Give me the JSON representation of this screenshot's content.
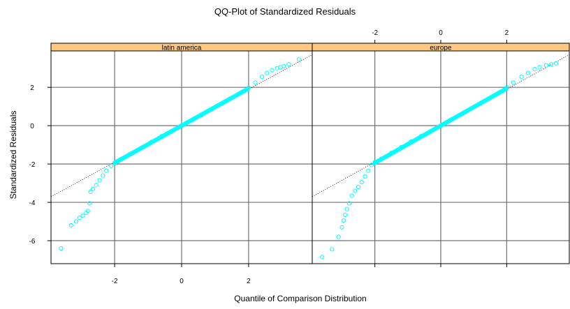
{
  "chart_data": {
    "type": "scatter",
    "title": "QQ-Plot of Standardized Residuals",
    "xlabel": "Quantile of Comparison Distribution",
    "ylabel": "Standardized Residuals",
    "xlim": [
      -3.9,
      3.9
    ],
    "ylim": [
      -7.2,
      3.9
    ],
    "x_ticks": [
      -2,
      0,
      2
    ],
    "y_ticks": [
      2,
      0,
      -2,
      -4,
      -6
    ],
    "x_tick_labels": [
      "-2",
      "0",
      "2"
    ],
    "y_tick_labels": [
      "2",
      "0",
      "-2",
      "-4",
      "-6"
    ],
    "grid": true,
    "point_color": "#00ffff",
    "strip_color": "#ffc880",
    "reference_line": {
      "slope": 0.95,
      "intercept": 0.0
    },
    "panels": [
      {
        "name": "latin america",
        "points": [
          [
            -3.6,
            -6.4
          ],
          [
            -3.3,
            -5.2
          ],
          [
            -3.15,
            -5.0
          ],
          [
            -3.05,
            -4.8
          ],
          [
            -2.95,
            -4.7
          ],
          [
            -2.85,
            -4.55
          ],
          [
            -2.8,
            -4.45
          ],
          [
            -2.75,
            -4.05
          ],
          [
            -2.72,
            -3.45
          ],
          [
            -2.65,
            -3.3
          ],
          [
            -2.55,
            -3.1
          ],
          [
            -2.45,
            -2.85
          ],
          [
            -2.35,
            -2.6
          ],
          [
            -2.25,
            -2.35
          ],
          [
            -2.1,
            -2.1
          ],
          [
            -2.0,
            -1.95
          ],
          [
            -1.8,
            -1.75
          ],
          [
            -1.5,
            -1.45
          ],
          [
            -1.2,
            -1.15
          ],
          [
            -0.9,
            -0.85
          ],
          [
            -0.6,
            -0.55
          ],
          [
            -0.3,
            -0.3
          ],
          [
            0.0,
            0.0
          ],
          [
            0.3,
            0.28
          ],
          [
            0.6,
            0.55
          ],
          [
            0.9,
            0.85
          ],
          [
            1.2,
            1.15
          ],
          [
            1.5,
            1.45
          ],
          [
            1.8,
            1.75
          ],
          [
            2.0,
            1.98
          ],
          [
            2.2,
            2.25
          ],
          [
            2.4,
            2.55
          ],
          [
            2.55,
            2.75
          ],
          [
            2.7,
            2.9
          ],
          [
            2.85,
            3.0
          ],
          [
            2.95,
            3.05
          ],
          [
            3.05,
            3.1
          ],
          [
            3.2,
            3.2
          ],
          [
            3.5,
            3.45
          ]
        ]
      },
      {
        "name": "europe",
        "points": [
          [
            -3.6,
            -6.85
          ],
          [
            -3.3,
            -6.45
          ],
          [
            -3.1,
            -5.8
          ],
          [
            -3.0,
            -5.3
          ],
          [
            -2.95,
            -4.95
          ],
          [
            -2.9,
            -4.65
          ],
          [
            -2.85,
            -4.35
          ],
          [
            -2.78,
            -4.05
          ],
          [
            -2.7,
            -3.65
          ],
          [
            -2.6,
            -3.4
          ],
          [
            -2.5,
            -3.2
          ],
          [
            -2.4,
            -2.95
          ],
          [
            -2.3,
            -2.65
          ],
          [
            -2.2,
            -2.35
          ],
          [
            -2.1,
            -2.05
          ],
          [
            -2.0,
            -1.9
          ],
          [
            -1.8,
            -1.72
          ],
          [
            -1.5,
            -1.42
          ],
          [
            -1.2,
            -1.12
          ],
          [
            -0.9,
            -0.82
          ],
          [
            -0.6,
            -0.55
          ],
          [
            -0.3,
            -0.28
          ],
          [
            0.0,
            0.0
          ],
          [
            0.3,
            0.3
          ],
          [
            0.6,
            0.58
          ],
          [
            0.9,
            0.88
          ],
          [
            1.2,
            1.15
          ],
          [
            1.5,
            1.45
          ],
          [
            1.8,
            1.75
          ],
          [
            2.0,
            2.0
          ],
          [
            2.2,
            2.25
          ],
          [
            2.45,
            2.55
          ],
          [
            2.65,
            2.75
          ],
          [
            2.85,
            2.95
          ],
          [
            3.0,
            3.05
          ],
          [
            3.2,
            3.15
          ],
          [
            3.35,
            3.2
          ],
          [
            3.5,
            3.25
          ]
        ]
      }
    ]
  }
}
